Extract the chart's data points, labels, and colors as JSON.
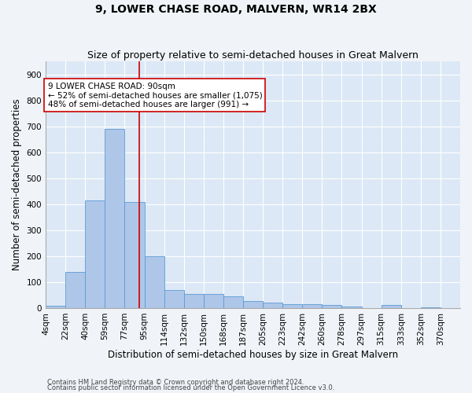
{
  "title": "9, LOWER CHASE ROAD, MALVERN, WR14 2BX",
  "subtitle": "Size of property relative to semi-detached houses in Great Malvern",
  "xlabel": "Distribution of semi-detached houses by size in Great Malvern",
  "ylabel": "Number of semi-detached properties",
  "bin_labels": [
    "4sqm",
    "22sqm",
    "40sqm",
    "59sqm",
    "77sqm",
    "95sqm",
    "114sqm",
    "132sqm",
    "150sqm",
    "168sqm",
    "187sqm",
    "205sqm",
    "223sqm",
    "242sqm",
    "260sqm",
    "278sqm",
    "297sqm",
    "315sqm",
    "333sqm",
    "352sqm",
    "370sqm"
  ],
  "bar_values": [
    10,
    140,
    415,
    690,
    410,
    200,
    70,
    55,
    55,
    45,
    28,
    22,
    15,
    15,
    12,
    5,
    0,
    12,
    0,
    4,
    0
  ],
  "property_size_label_idx": 5,
  "bar_color": "#aec6e8",
  "bar_edge_color": "#5b9bd5",
  "vline_color": "#cc0000",
  "annotation_text": "9 LOWER CHASE ROAD: 90sqm\n← 52% of semi-detached houses are smaller (1,075)\n48% of semi-detached houses are larger (991) →",
  "annotation_box_color": "#ffffff",
  "annotation_box_edge": "#cc0000",
  "footer1": "Contains HM Land Registry data © Crown copyright and database right 2024.",
  "footer2": "Contains public sector information licensed under the Open Government Licence v3.0.",
  "ylim": [
    0,
    950
  ],
  "yticks": [
    0,
    100,
    200,
    300,
    400,
    500,
    600,
    700,
    800,
    900
  ],
  "background_color": "#dce8f5",
  "grid_color": "#ffffff",
  "fig_bg_color": "#f0f4f8",
  "title_fontsize": 10,
  "subtitle_fontsize": 9,
  "axis_label_fontsize": 8.5,
  "tick_fontsize": 7.5,
  "annotation_fontsize": 7.5
}
